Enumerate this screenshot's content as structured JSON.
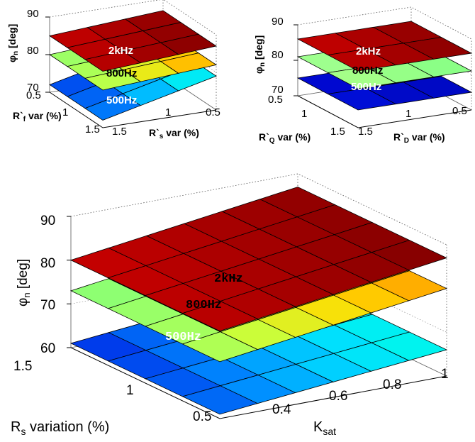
{
  "chart_data": [
    {
      "type": "surface3d",
      "panel": "top-left",
      "zlabel": "φn [deg]",
      "xlabel": "R`f var (%)",
      "ylabel": "R`s var (%)",
      "zticks": [
        70,
        80,
        90
      ],
      "xticks": [
        0.5,
        1,
        1.5
      ],
      "yticks": [
        1.5,
        1,
        0.5
      ],
      "zlim": [
        70,
        90
      ],
      "series": [
        {
          "name": "2kHz",
          "z_start": 85,
          "z_end": 87,
          "colormap": "dark-red"
        },
        {
          "name": "800Hz",
          "z_start": 80,
          "z_end": 82,
          "colormap": "green-yellow-orange"
        },
        {
          "name": "500Hz",
          "z_start": 72,
          "z_end": 79,
          "colormap": "blue-cyan"
        }
      ]
    },
    {
      "type": "surface3d",
      "panel": "top-right",
      "zlabel": "φn [deg]",
      "xlabel": "R`Q var (%)",
      "ylabel": "R`D var (%)",
      "zticks": [
        70,
        80,
        90
      ],
      "xticks": [
        0.5,
        1,
        1.5
      ],
      "yticks": [
        1.5,
        1,
        0.5
      ],
      "zlim": [
        70,
        90
      ],
      "series": [
        {
          "name": "2kHz",
          "z_start": 86,
          "z_end": 86,
          "colormap": "dark-red"
        },
        {
          "name": "800Hz",
          "z_start": 81,
          "z_end": 81,
          "colormap": "light-green"
        },
        {
          "name": "500Hz",
          "z_start": 75,
          "z_end": 75,
          "colormap": "dark-blue"
        }
      ]
    },
    {
      "type": "surface3d",
      "panel": "bottom",
      "zlabel": "φn [deg]",
      "xlabel": "Rs variation (%)",
      "ylabel": "Ksat",
      "zticks": [
        60,
        70,
        80,
        90
      ],
      "xticks": [
        1.5,
        1,
        0.5
      ],
      "yticks": [
        0.4,
        0.6,
        0.8,
        1
      ],
      "zlim": [
        60,
        90
      ],
      "series": [
        {
          "name": "2kHz",
          "z_start": 80,
          "z_end": 87,
          "colormap": "dark-red"
        },
        {
          "name": "800Hz",
          "z_start": 73,
          "z_end": 80,
          "colormap": "green-yellow-orange"
        },
        {
          "name": "500Hz",
          "z_start": 61,
          "z_end": 66,
          "colormap": "blue-cyan"
        }
      ]
    }
  ],
  "labels": {
    "tl": {
      "zt": [
        "90",
        "80",
        "70"
      ],
      "ft": [
        "0.5",
        "1",
        "1.5"
      ],
      "st": [
        "1.5",
        "1",
        "0.5"
      ],
      "s": [
        "2kHz",
        "800Hz",
        "500Hz"
      ]
    },
    "tr": {
      "zt": [
        "90",
        "80",
        "70"
      ],
      "qt": [
        "0.5",
        "1",
        "1.5"
      ],
      "dt": [
        "1.5",
        "1",
        "0.5"
      ],
      "s": [
        "2kHz",
        "800Hz",
        "500Hz"
      ]
    },
    "bt": {
      "zt": [
        "90",
        "80",
        "70",
        "60"
      ],
      "rt": [
        "1.5",
        "1",
        "0.5"
      ],
      "kt": [
        "0.4",
        "0.6",
        "0.8",
        "1"
      ],
      "s": [
        "2kHz",
        "800Hz",
        "500Hz"
      ]
    }
  }
}
